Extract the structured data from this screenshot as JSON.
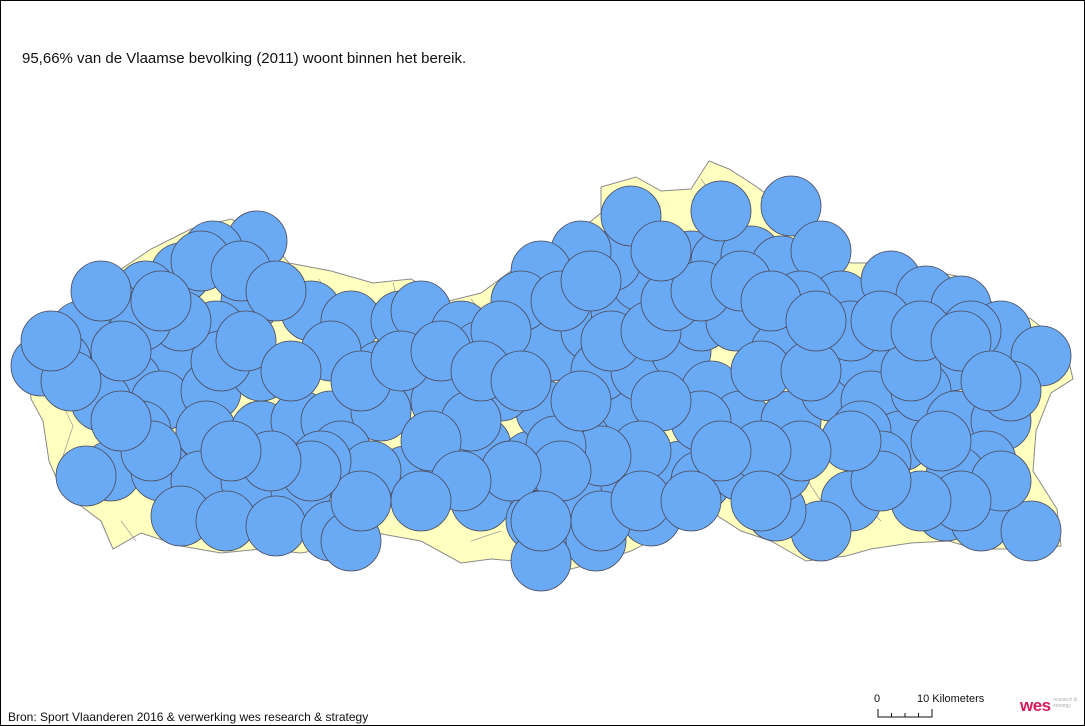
{
  "headline": "95,66% van de Vlaamse bevolking (2011) woont binnen het bereik.",
  "source": "Bron: Sport Vlaanderen 2016 & verwerking wes research & strategy",
  "scalebar": {
    "zero_label": "0",
    "max_label": "10 Kilometers"
  },
  "logo": {
    "word": "wes",
    "tagline": "research & strategy"
  },
  "colors": {
    "region_fill": "#ffffc0",
    "region_border": "#8a8a8a",
    "coverage_fill": "#6aa9f4",
    "coverage_stroke": "#4a4a5a",
    "logo": "#d61a5c"
  }
}
